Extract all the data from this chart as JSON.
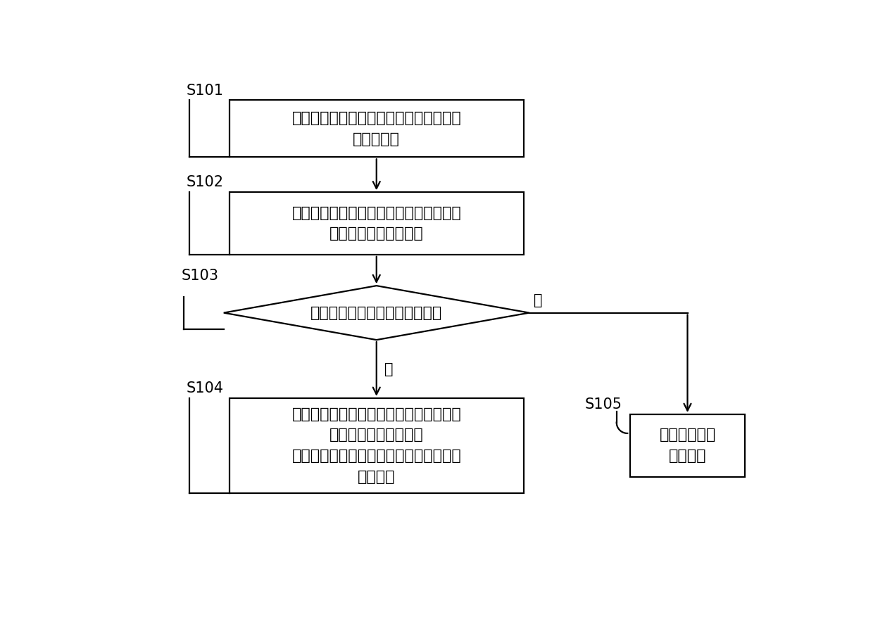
{
  "bg_color": "#ffffff",
  "box_color": "#ffffff",
  "box_edge_color": "#000000",
  "arrow_color": "#000000",
  "lw": 1.6,
  "font_size": 16,
  "label_font_size": 15,
  "s101_text": "购买者在售卖终端上点选所需的烟品并确\n认购买信息",
  "s102_text": "购买者将身份证件放置于身份证认证区以\n获取购买者的身份信息",
  "s103_text": "判断身份信息是否满足购买条件",
  "s104_text": "购买者进行付款，售卖终端同时推出购买\n者购买的烟品和赠送的\n品吸烟，购买者取走所购买的烟品和赠送\n的品吸烟",
  "s105_text": "售卖终端提示\n无法购买",
  "yes_label": "是",
  "no_label": "否",
  "s101_label": "S101",
  "s102_label": "S102",
  "s103_label": "S103",
  "s104_label": "S104",
  "s105_label": "S105"
}
